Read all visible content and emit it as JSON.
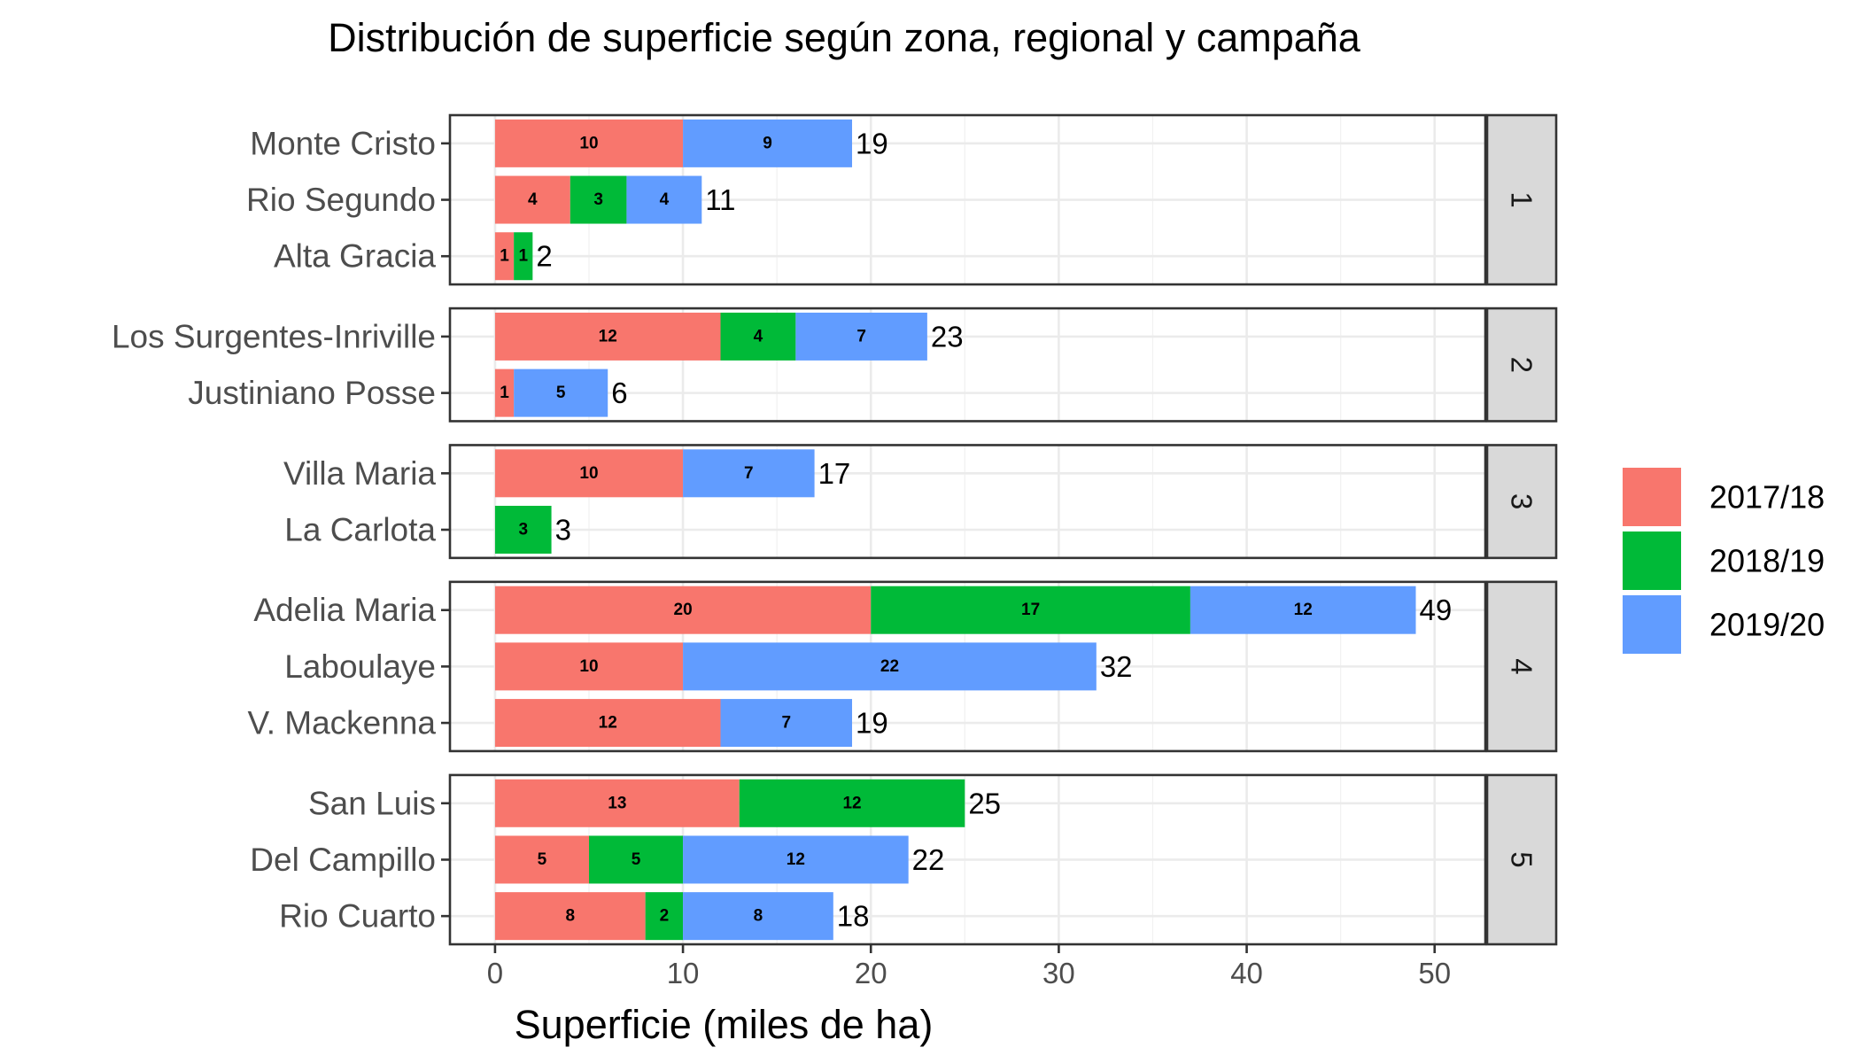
{
  "chart_data": {
    "type": "bar",
    "orientation": "horizontal",
    "stacked": true,
    "title": "Distribución de superficie según zona, regional y campaña",
    "xlabel": "Superficie (miles de ha)",
    "ylabel": "",
    "xlim": [
      -2.4,
      52.7
    ],
    "x_ticks": [
      0,
      10,
      20,
      30,
      40,
      50
    ],
    "grid": true,
    "legend_position": "right",
    "series": [
      {
        "name": "2017/18",
        "color": "#F8766D"
      },
      {
        "name": "2018/19",
        "color": "#00BA38"
      },
      {
        "name": "2019/20",
        "color": "#619CFF"
      }
    ],
    "facets": [
      {
        "label": "1",
        "rows": [
          {
            "category": "Monte Cristo",
            "values": [
              10,
              0,
              9
            ],
            "total": 19
          },
          {
            "category": "Rio Segundo",
            "values": [
              4,
              3,
              4
            ],
            "total": 11
          },
          {
            "category": "Alta Gracia",
            "values": [
              1,
              1,
              0
            ],
            "total": 2
          }
        ]
      },
      {
        "label": "2",
        "rows": [
          {
            "category": "Los Surgentes-Inriville",
            "values": [
              12,
              4,
              7
            ],
            "total": 23
          },
          {
            "category": "Justiniano Posse",
            "values": [
              1,
              0,
              5
            ],
            "total": 6
          }
        ]
      },
      {
        "label": "3",
        "rows": [
          {
            "category": "Villa Maria",
            "values": [
              10,
              0,
              7
            ],
            "total": 17
          },
          {
            "category": "La Carlota",
            "values": [
              0,
              3,
              0
            ],
            "total": 3
          }
        ]
      },
      {
        "label": "4",
        "rows": [
          {
            "category": "Adelia Maria",
            "values": [
              20,
              17,
              12
            ],
            "total": 49
          },
          {
            "category": "Laboulaye",
            "values": [
              10,
              0,
              22
            ],
            "total": 32
          },
          {
            "category": "V. Mackenna",
            "values": [
              12,
              0,
              7
            ],
            "total": 19
          }
        ]
      },
      {
        "label": "5",
        "rows": [
          {
            "category": "San Luis",
            "values": [
              13,
              12,
              0
            ],
            "total": 25
          },
          {
            "category": "Del Campillo",
            "values": [
              5,
              5,
              12
            ],
            "total": 22
          },
          {
            "category": "Rio Cuarto",
            "values": [
              8,
              2,
              8
            ],
            "total": 18
          }
        ]
      }
    ]
  }
}
